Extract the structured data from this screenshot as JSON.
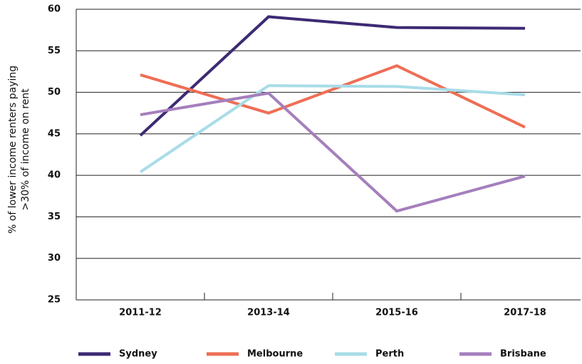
{
  "chart_data": {
    "type": "line",
    "y_label": [
      "% of lower income renters paying",
      ">30% of income on rent"
    ],
    "categories": [
      "2011-12",
      "2013-14",
      "2015-16",
      "2017-18"
    ],
    "series": [
      {
        "name": "Sydney",
        "color": "#3d2a73",
        "values": [
          44.8,
          59.1,
          57.8,
          57.7
        ]
      },
      {
        "name": "Melbourne",
        "color": "#ee6e55",
        "values": [
          52.1,
          47.5,
          53.2,
          45.8
        ]
      },
      {
        "name": "Perth",
        "color": "#a8dce8",
        "values": [
          40.4,
          50.8,
          50.7,
          49.7
        ]
      },
      {
        "name": "Brisbane",
        "color": "#a57fbc",
        "values": [
          47.3,
          49.9,
          35.7,
          39.9
        ]
      }
    ],
    "ylim": [
      25,
      60
    ],
    "yticks": [
      25,
      30,
      35,
      40,
      45,
      50,
      55,
      60
    ],
    "grid": true,
    "legend": "bottom"
  }
}
